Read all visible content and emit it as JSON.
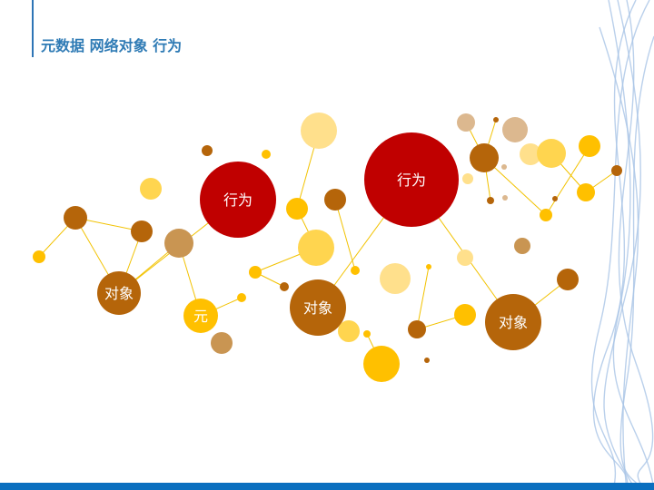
{
  "slide": {
    "title": "元数据 网络对象 行为"
  },
  "diagram": {
    "labels": {
      "object_left": "对象",
      "element": "元",
      "behavior_left": "行为",
      "object_center": "对象",
      "behavior_center": "行为",
      "object_right": "对象"
    }
  },
  "colors": {
    "accent": "#2e75b6",
    "bottom_bar": "#0a6fbf",
    "red": "#c00000",
    "dark_orange": "#b5650a",
    "gold": "#ffc000",
    "light_gold": "#ffd54f",
    "pale_yellow": "#ffe08c",
    "tan": "#c99552",
    "light_tan": "#dcb88f",
    "line": "#f2c200",
    "wave": "#a9c4e6"
  }
}
